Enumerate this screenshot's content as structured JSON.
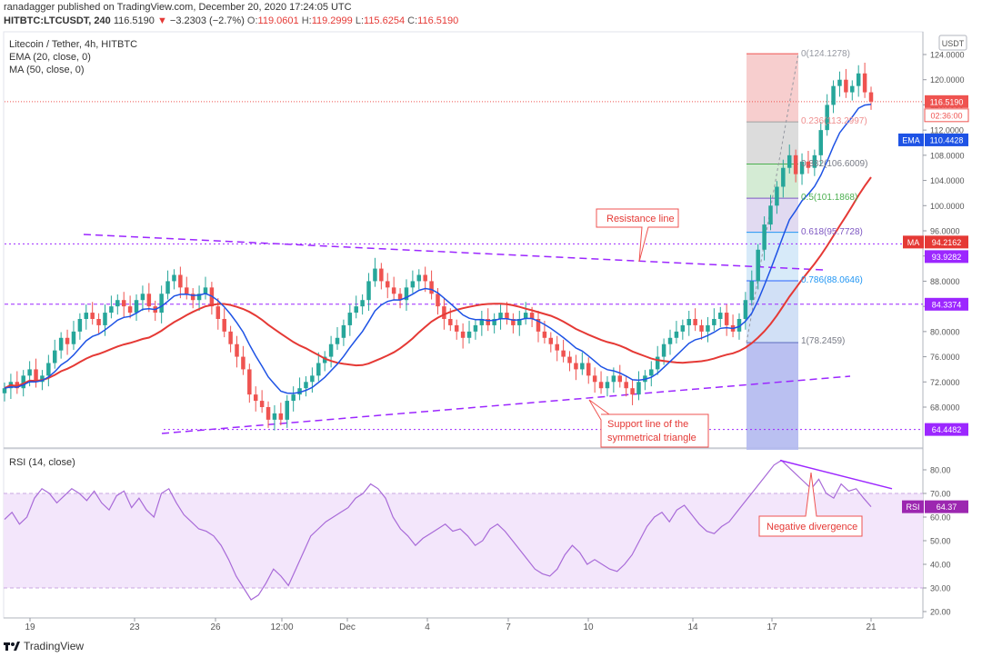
{
  "header": {
    "published": "ranadagger published on TradingView.com, December 20, 2020 17:24:05 UTC",
    "ticker": "HITBTC:LTCUSDT, 240",
    "last": "116.5190",
    "change": "−3.2303 (−2.7%)",
    "o_label": "O:",
    "o": "119.0601",
    "h_label": "H:",
    "h": "119.2999",
    "l_label": "L:",
    "l": "115.6254",
    "c_label": "C:",
    "c": "116.5190"
  },
  "legend": {
    "title": "Litecoin / Tether, 4h, HITBTC",
    "ema": "EMA (20, close, 0)",
    "ma": "MA (50, close, 0)"
  },
  "axis": {
    "currency": "USDT",
    "price_ticks": [
      "124.0000",
      "120.0000",
      "116.0000",
      "112.0000",
      "108.0000",
      "104.0000",
      "100.0000",
      "96.0000",
      "92.0000",
      "88.0000",
      "84.0000",
      "80.0000",
      "76.0000",
      "72.0000",
      "68.0000"
    ],
    "rsi_ticks": [
      "80.00",
      "70.00",
      "60.00",
      "50.00",
      "40.00",
      "30.00",
      "20.00"
    ],
    "x_ticks": [
      "19",
      "23",
      "26",
      "12:00",
      "Dec",
      "4",
      "7",
      "10",
      "14",
      "17",
      "21"
    ]
  },
  "price_labels": {
    "last": "116.5190",
    "countdown": "02:36:00",
    "ema_tag": "EMA",
    "ema": "110.4428",
    "ma_tag": "MA",
    "ma": "94.2162",
    "level_939": "93.9282",
    "level_843": "84.3374",
    "level_644": "64.4482",
    "rsi_tag": "RSI",
    "rsi": "64.37"
  },
  "fib": {
    "l0": "0(124.1278)",
    "l236": "0.236(113.2997)",
    "l382": "0.382(106.6009)",
    "l5": "0.5(101.1868)",
    "l618": "0.618(95.7728)",
    "l786": "0.786(88.0646)",
    "l1": "1(78.2459)"
  },
  "annotations": {
    "resistance": "Resistance line",
    "support1": "Support line of the",
    "support2": "symmetrical triangle",
    "divergence": "Negative divergence"
  },
  "rsi_legend": "RSI (14, close)",
  "footer": "TradingView",
  "colors": {
    "up": "#26a69a",
    "down": "#ef5350",
    "ema": "#1e53e5",
    "ma": "#e53935",
    "trend": "#9c27ff",
    "rsi": "#a86ad8"
  },
  "chart_data": {
    "type": "candlestick",
    "title": "Litecoin / Tether, 4h, HITBTC",
    "interval": "4h",
    "ylim": [
      62,
      126
    ],
    "rsi_ylim": [
      18,
      88
    ],
    "x_ticks": [
      "19",
      "23",
      "26",
      "12:00",
      "Dec",
      "4",
      "7",
      "10",
      "14",
      "17",
      "21"
    ],
    "series": [
      {
        "name": "EMA (20, close, 0)",
        "last": 110.4428
      },
      {
        "name": "MA (50, close, 0)",
        "last": 94.2162
      },
      {
        "name": "RSI (14, close)",
        "last": 64.37
      }
    ],
    "candles_close": [
      71,
      72,
      71,
      73,
      74,
      72,
      73,
      75,
      77,
      79,
      78,
      80,
      82,
      83,
      82,
      81,
      83,
      84,
      85,
      84,
      83,
      85,
      86,
      84,
      83,
      86,
      88,
      89,
      87,
      86,
      85,
      86,
      87,
      84,
      82,
      80,
      78,
      76,
      74,
      70,
      69,
      68,
      66,
      67,
      66,
      69,
      70,
      71,
      72,
      73,
      75,
      76,
      78,
      79,
      81,
      83,
      84,
      85,
      88,
      90,
      88,
      87,
      86,
      85,
      87,
      88,
      89,
      88,
      86,
      84,
      82,
      81,
      80,
      79,
      80,
      81,
      82,
      81,
      82,
      83,
      82,
      81,
      82,
      83,
      82,
      80,
      79,
      78,
      77,
      76,
      75,
      74,
      75,
      73,
      72,
      71,
      72,
      73,
      72,
      71,
      70,
      72,
      73,
      74,
      76,
      78,
      79,
      80,
      81,
      82,
      81,
      80,
      81,
      82,
      83,
      81,
      80,
      82,
      85,
      88,
      93,
      97,
      100,
      103,
      106,
      108,
      105,
      107,
      106,
      108,
      112,
      116,
      119,
      120,
      118,
      119,
      121,
      118,
      116.519
    ],
    "rsi": [
      59,
      62,
      57,
      60,
      68,
      72,
      70,
      66,
      69,
      72,
      70,
      67,
      71,
      66,
      63,
      69,
      71,
      64,
      68,
      63,
      60,
      70,
      72,
      66,
      61,
      58,
      55,
      54,
      52,
      48,
      42,
      35,
      30,
      25,
      27,
      32,
      38,
      35,
      31,
      38,
      45,
      52,
      55,
      58,
      60,
      62,
      64,
      68,
      70,
      74,
      72,
      68,
      60,
      55,
      52,
      48,
      51,
      53,
      55,
      57,
      54,
      55,
      52,
      48,
      50,
      55,
      57,
      54,
      50,
      46,
      42,
      38,
      36,
      35,
      38,
      44,
      48,
      45,
      40,
      42,
      40,
      38,
      37,
      40,
      44,
      50,
      56,
      60,
      62,
      58,
      63,
      65,
      61,
      57,
      54,
      53,
      56,
      58,
      62,
      66,
      70,
      74,
      78,
      82,
      84,
      81,
      78,
      75,
      72,
      76,
      70,
      68,
      74,
      71,
      72,
      68,
      64.37
    ],
    "fib_levels": [
      {
        "ratio": "0",
        "price": 124.1278
      },
      {
        "ratio": "0.236",
        "price": 113.2997
      },
      {
        "ratio": "0.382",
        "price": 106.6009
      },
      {
        "ratio": "0.5",
        "price": 101.1868
      },
      {
        "ratio": "0.618",
        "price": 95.7728
      },
      {
        "ratio": "0.786",
        "price": 88.0646
      },
      {
        "ratio": "1",
        "price": 78.2459
      }
    ],
    "horizontal_levels": [
      93.9282,
      84.3374,
      64.4482,
      116.519
    ],
    "annotations": [
      "Resistance line",
      "Support line of the symmetrical triangle",
      "Negative divergence"
    ]
  }
}
